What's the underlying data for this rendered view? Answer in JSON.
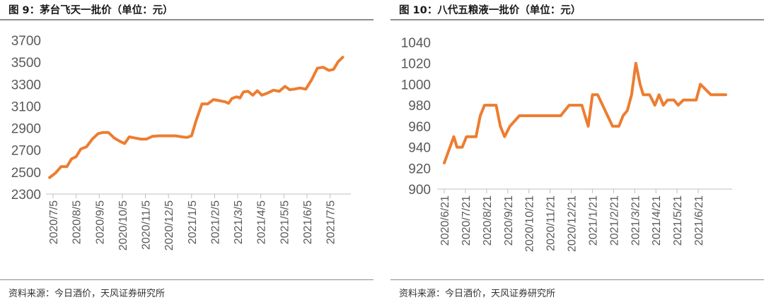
{
  "chart_data": [
    {
      "type": "line",
      "title": "图 9：茅台飞天一批价（单位：元）",
      "source": "资料来源：今日酒价，天风证券研究所",
      "color": "#ED7D31",
      "ylim": [
        2300,
        3700
      ],
      "yticks": [
        2300,
        2500,
        2700,
        2900,
        3100,
        3300,
        3500,
        3700
      ],
      "xlim": [
        0,
        12.35
      ],
      "xticks": [
        {
          "pos": 0,
          "label": "2020/7/5"
        },
        {
          "pos": 1,
          "label": "2020/8/5"
        },
        {
          "pos": 2,
          "label": "2020/9/5"
        },
        {
          "pos": 3,
          "label": "2020/10/5"
        },
        {
          "pos": 4,
          "label": "2020/11/5"
        },
        {
          "pos": 5,
          "label": "2020/12/5"
        },
        {
          "pos": 6,
          "label": "2021/1/5"
        },
        {
          "pos": 7,
          "label": "2021/2/5"
        },
        {
          "pos": 8,
          "label": "2021/3/5"
        },
        {
          "pos": 9,
          "label": "2021/4/5"
        },
        {
          "pos": 10,
          "label": "2021/5/5"
        },
        {
          "pos": 11,
          "label": "2021/6/5"
        },
        {
          "pos": 12,
          "label": "2021/7/5"
        }
      ],
      "points": [
        [
          -0.15,
          2450
        ],
        [
          0.1,
          2490
        ],
        [
          0.35,
          2550
        ],
        [
          0.6,
          2550
        ],
        [
          0.8,
          2620
        ],
        [
          1.0,
          2640
        ],
        [
          1.2,
          2710
        ],
        [
          1.45,
          2730
        ],
        [
          1.7,
          2800
        ],
        [
          1.95,
          2850
        ],
        [
          2.15,
          2860
        ],
        [
          2.4,
          2860
        ],
        [
          2.65,
          2810
        ],
        [
          2.9,
          2780
        ],
        [
          3.1,
          2760
        ],
        [
          3.3,
          2820
        ],
        [
          3.55,
          2810
        ],
        [
          3.8,
          2800
        ],
        [
          4.05,
          2800
        ],
        [
          4.3,
          2825
        ],
        [
          4.6,
          2830
        ],
        [
          5.0,
          2830
        ],
        [
          5.3,
          2830
        ],
        [
          5.6,
          2820
        ],
        [
          5.8,
          2815
        ],
        [
          6.0,
          2830
        ],
        [
          6.2,
          2970
        ],
        [
          6.45,
          3120
        ],
        [
          6.7,
          3120
        ],
        [
          6.95,
          3160
        ],
        [
          7.2,
          3150
        ],
        [
          7.45,
          3140
        ],
        [
          7.6,
          3125
        ],
        [
          7.75,
          3170
        ],
        [
          7.95,
          3185
        ],
        [
          8.1,
          3175
        ],
        [
          8.25,
          3230
        ],
        [
          8.45,
          3235
        ],
        [
          8.65,
          3200
        ],
        [
          8.85,
          3240
        ],
        [
          9.05,
          3200
        ],
        [
          9.3,
          3220
        ],
        [
          9.55,
          3245
        ],
        [
          9.8,
          3235
        ],
        [
          10.05,
          3280
        ],
        [
          10.25,
          3250
        ],
        [
          10.45,
          3255
        ],
        [
          10.7,
          3265
        ],
        [
          10.95,
          3255
        ],
        [
          11.2,
          3340
        ],
        [
          11.45,
          3445
        ],
        [
          11.7,
          3455
        ],
        [
          11.95,
          3425
        ],
        [
          12.15,
          3435
        ],
        [
          12.35,
          3505
        ],
        [
          12.55,
          3545
        ]
      ]
    },
    {
      "type": "line",
      "title": "图 10：八代五粮液一批价（单位：元）",
      "source": "资料来源：今日酒价，天风证券研究所",
      "color": "#ED7D31",
      "ylim": [
        900,
        1040
      ],
      "yticks": [
        900,
        920,
        940,
        960,
        980,
        1000,
        1020,
        1040
      ],
      "xlim": [
        0,
        13
      ],
      "xticks": [
        {
          "pos": 0,
          "label": "2020/6/21"
        },
        {
          "pos": 1,
          "label": "2020/7/21"
        },
        {
          "pos": 2,
          "label": "2020/8/21"
        },
        {
          "pos": 3,
          "label": "2020/9/21"
        },
        {
          "pos": 4,
          "label": "2020/10/21"
        },
        {
          "pos": 5,
          "label": "2020/11/21"
        },
        {
          "pos": 6,
          "label": "2020/12/21"
        },
        {
          "pos": 7,
          "label": "2021/1/21"
        },
        {
          "pos": 8,
          "label": "2021/2/21"
        },
        {
          "pos": 9,
          "label": "2021/3/21"
        },
        {
          "pos": 10,
          "label": "2021/4/21"
        },
        {
          "pos": 11,
          "label": "2021/5/21"
        },
        {
          "pos": 12,
          "label": "2021/6/21"
        }
      ],
      "points": [
        [
          0.0,
          925
        ],
        [
          0.45,
          950
        ],
        [
          0.6,
          940
        ],
        [
          0.85,
          940
        ],
        [
          1.05,
          950
        ],
        [
          1.5,
          950
        ],
        [
          1.7,
          970
        ],
        [
          1.9,
          980
        ],
        [
          2.45,
          980
        ],
        [
          2.65,
          960
        ],
        [
          2.85,
          950
        ],
        [
          3.1,
          960
        ],
        [
          3.55,
          970
        ],
        [
          4.0,
          970
        ],
        [
          5.5,
          970
        ],
        [
          5.9,
          980
        ],
        [
          6.5,
          980
        ],
        [
          6.8,
          960
        ],
        [
          7.0,
          990
        ],
        [
          7.25,
          990
        ],
        [
          7.95,
          960
        ],
        [
          8.25,
          960
        ],
        [
          8.45,
          970
        ],
        [
          8.65,
          975
        ],
        [
          8.85,
          990
        ],
        [
          9.05,
          1020
        ],
        [
          9.25,
          1000
        ],
        [
          9.4,
          990
        ],
        [
          9.7,
          990
        ],
        [
          9.95,
          980
        ],
        [
          10.15,
          990
        ],
        [
          10.35,
          980
        ],
        [
          10.55,
          985
        ],
        [
          10.85,
          985
        ],
        [
          11.05,
          980
        ],
        [
          11.3,
          985
        ],
        [
          11.6,
          985
        ],
        [
          11.9,
          985
        ],
        [
          12.1,
          1000
        ],
        [
          12.6,
          990
        ],
        [
          13.0,
          990
        ],
        [
          13.3,
          990
        ]
      ]
    }
  ]
}
